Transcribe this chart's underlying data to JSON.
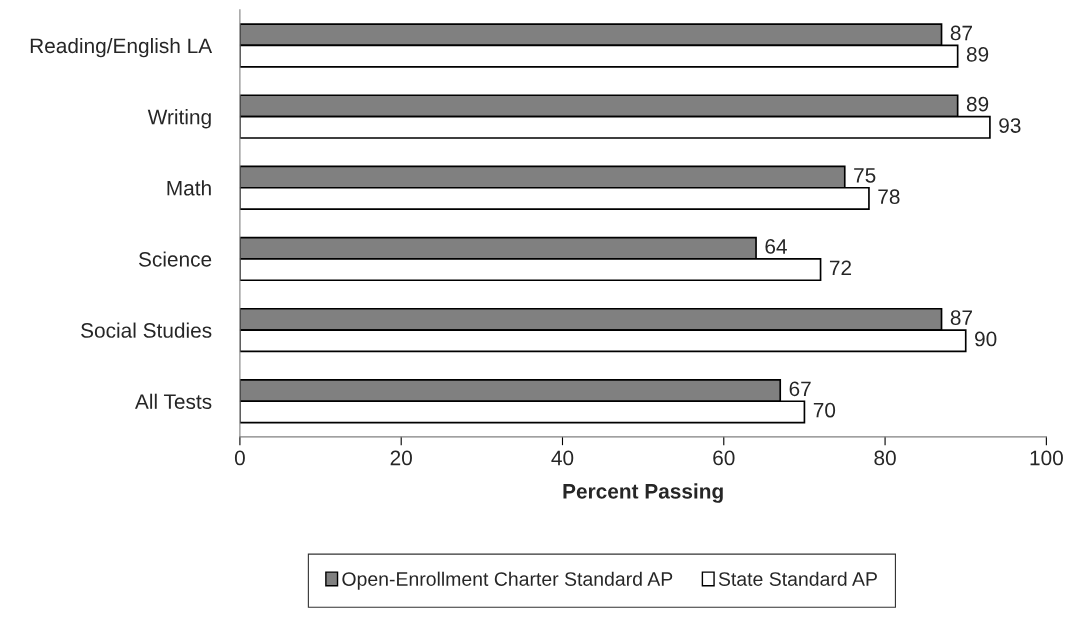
{
  "chart_data": {
    "type": "bar",
    "orientation": "horizontal",
    "xlabel": "Percent Passing",
    "categories": [
      "Reading/English LA",
      "Writing",
      "Math",
      "Science",
      "Social Studies",
      "All Tests"
    ],
    "series": [
      {
        "name": "Open-Enrollment Charter Standard AP",
        "color": "#808080",
        "values": [
          87,
          89,
          75,
          64,
          87,
          67
        ]
      },
      {
        "name": "State Standard AP",
        "color": "#ffffff",
        "values": [
          89,
          93,
          78,
          72,
          90,
          70
        ]
      }
    ],
    "xlim": [
      0,
      100
    ],
    "xticks": [
      0,
      20,
      40,
      60,
      80,
      100
    ],
    "grid": false,
    "legend": "bottom",
    "data_labels": true
  }
}
